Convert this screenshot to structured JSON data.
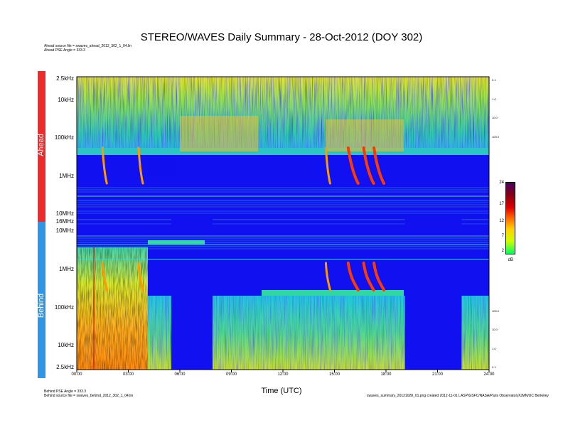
{
  "title": "STEREO/WAVES Daily Summary - 28-Oct-2012 (DOY 302)",
  "header_info": {
    "ahead_source": "Ahead source file = swaves_ahead_2012_302_1_04.lin",
    "ahead_pse": "Ahead PSE Angle = 333.3"
  },
  "footer_info": {
    "behind_pse": "Behind PSE Angle = 333.3",
    "behind_source": "Behind source file = swaves_behind_2012_302_1_04.lin",
    "credit": "swaves_summary_20121028_01.png  created 2012-11-01  LASP/GSFC/NASA/Paris Observatory/UMN/UC Berkeley"
  },
  "colors": {
    "ahead_bar": "#ee2b2b",
    "behind_bar": "#2f95e6",
    "background_level": "#1010f0"
  },
  "chart_data": {
    "type": "heatmap",
    "xlabel": "Time (UTC)",
    "x_ticks": [
      "00:00",
      "03:00",
      "06:00",
      "09:00",
      "12:00",
      "15:00",
      "18:00",
      "21:00",
      "24:00"
    ],
    "xlim_hours": [
      0,
      24
    ],
    "panels": [
      {
        "name": "Ahead",
        "y_ticks": [
          "2.5kHz",
          "10kHz",
          "100kHz",
          "1MHz",
          "10MHz",
          "16MHz"
        ],
        "right_ticks": [
          "0.1",
          "1.0",
          "10.0",
          "100.0"
        ]
      },
      {
        "name": "Behind",
        "y_ticks": [
          "10MHz",
          "1MHz",
          "100kHz",
          "10kHz",
          "2.5kHz"
        ],
        "right_ticks": [
          "100.0",
          "10.0",
          "1.0",
          "0.1"
        ]
      }
    ],
    "colorbar": {
      "unit": "dB",
      "ticks": [
        "24",
        "17",
        "12",
        "7",
        "2"
      ],
      "range": [
        2,
        24
      ]
    },
    "events_hours": [
      1.5,
      3.6,
      14.5,
      15.8,
      16.7,
      17.3
    ],
    "data_gaps_behind_hours": [
      [
        5.5,
        7.9
      ],
      [
        19.1,
        22.4
      ]
    ]
  }
}
